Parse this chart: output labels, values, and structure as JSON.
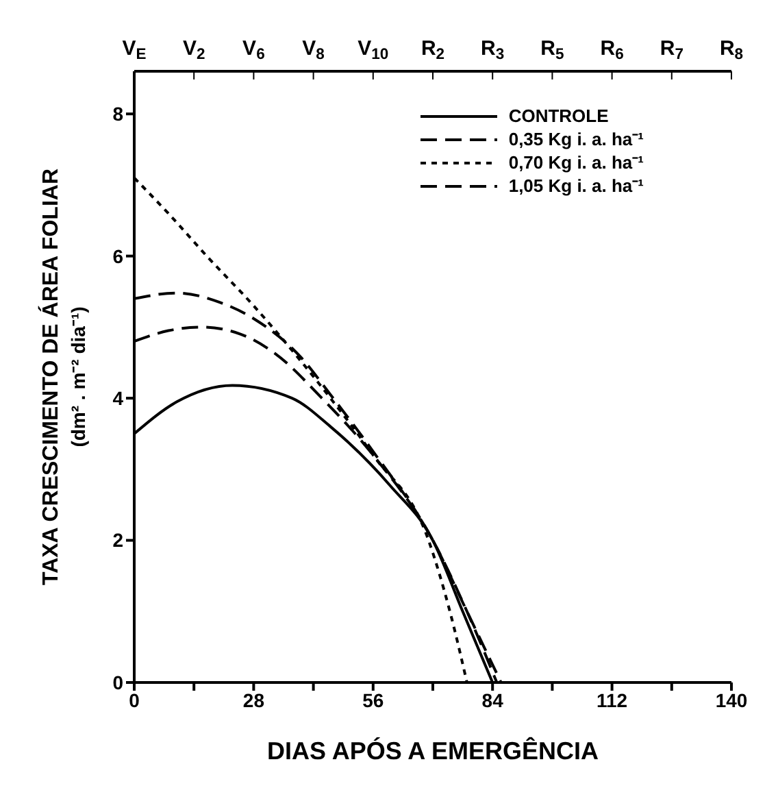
{
  "chart_data": {
    "type": "line",
    "xlabel": "DIAS APÓS A EMERGÊNCIA",
    "ylabel": "TAXA CRESCIMENTO DE ÁREA FOLIAR\n(dm² . m⁻² dia⁻¹)",
    "xlim": [
      0,
      140
    ],
    "ylim": [
      0,
      8.6
    ],
    "xticks": [
      0,
      {
        "value": 14,
        "label": null
      },
      28,
      {
        "value": 42,
        "label": null
      },
      56,
      {
        "value": 70,
        "label": null
      },
      84,
      {
        "value": 98,
        "label": null
      },
      112,
      {
        "value": 126,
        "label": null
      },
      140
    ],
    "yticks": [
      0,
      2,
      4,
      6,
      8
    ],
    "annotations": [
      "V$_{E}$",
      "V$_{2}$",
      "V$_{6}$",
      "V$_{8}$",
      "V$_{10}$",
      "R$_{2}$",
      "R$_{3}$",
      "R$_{5}$",
      "R$_{6}$",
      "R$_{7}$",
      "R$_{8}$"
    ],
    "grid": false,
    "legend": "top right",
    "marker": "none",
    "series": [
      {
        "name": "CONTROLE",
        "color": "#000000",
        "line_style": "solid",
        "x": [
          0,
          10,
          23,
          37,
          46,
          60,
          70,
          77,
          84
        ],
        "values": [
          3.5,
          3.95,
          4.18,
          4.0,
          3.6,
          2.77,
          2.0,
          1.0,
          0
        ]
      },
      {
        "name": "0,35 Kg i. a. ha⁻¹",
        "color": "#000000",
        "line_style": "dashed",
        "x": [
          0,
          8,
          16,
          25,
          33,
          44,
          56,
          70,
          78,
          85
        ],
        "values": [
          4.8,
          4.95,
          5.0,
          4.9,
          4.63,
          4.0,
          3.2,
          2.0,
          1.0,
          0
        ]
      },
      {
        "name": "0,70 Kg i. a. ha⁻¹",
        "color": "#000000",
        "line_style": "dotted",
        "x": [
          0,
          8,
          17,
          28,
          38,
          46,
          56,
          69,
          74,
          78
        ],
        "values": [
          7.1,
          6.6,
          6.0,
          5.3,
          4.6,
          4.0,
          3.2,
          2.0,
          1.0,
          0
        ]
      },
      {
        "name": "1,05 Kg i. a. ha⁻¹",
        "color": "#000000",
        "line_style": "dashed",
        "x": [
          0,
          10,
          20,
          28,
          39,
          46,
          56,
          70,
          78,
          86
        ],
        "values": [
          5.4,
          5.48,
          5.35,
          5.12,
          4.58,
          4.05,
          3.25,
          2.0,
          1.0,
          0
        ]
      }
    ]
  }
}
